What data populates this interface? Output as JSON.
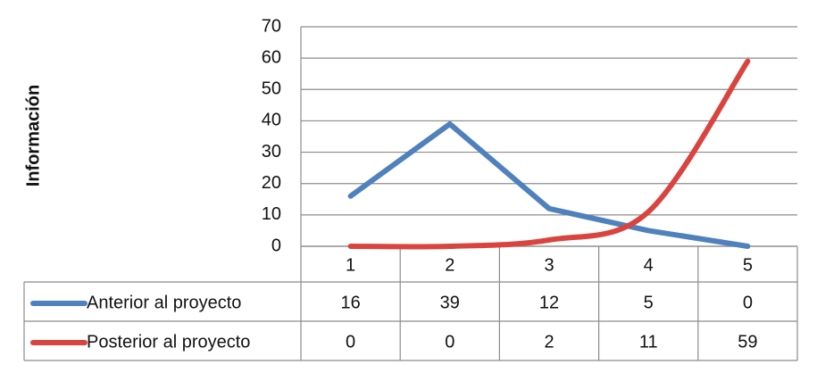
{
  "chart_data": {
    "type": "line",
    "y_label": "Información",
    "categories": [
      "1",
      "2",
      "3",
      "4",
      "5"
    ],
    "series": [
      {
        "name": "Anterior al proyecto",
        "color": "#4f81bd",
        "smooth": false,
        "values": [
          16,
          39,
          12,
          5,
          0
        ]
      },
      {
        "name": "Posterior al proyecto",
        "color": "#d9443f",
        "smooth": true,
        "values": [
          0,
          0,
          2,
          11,
          59
        ]
      }
    ],
    "ylim": [
      0,
      70
    ],
    "yticks": [
      0,
      10,
      20,
      30,
      40,
      50,
      60,
      70
    ],
    "grid": true,
    "data_table": true
  }
}
